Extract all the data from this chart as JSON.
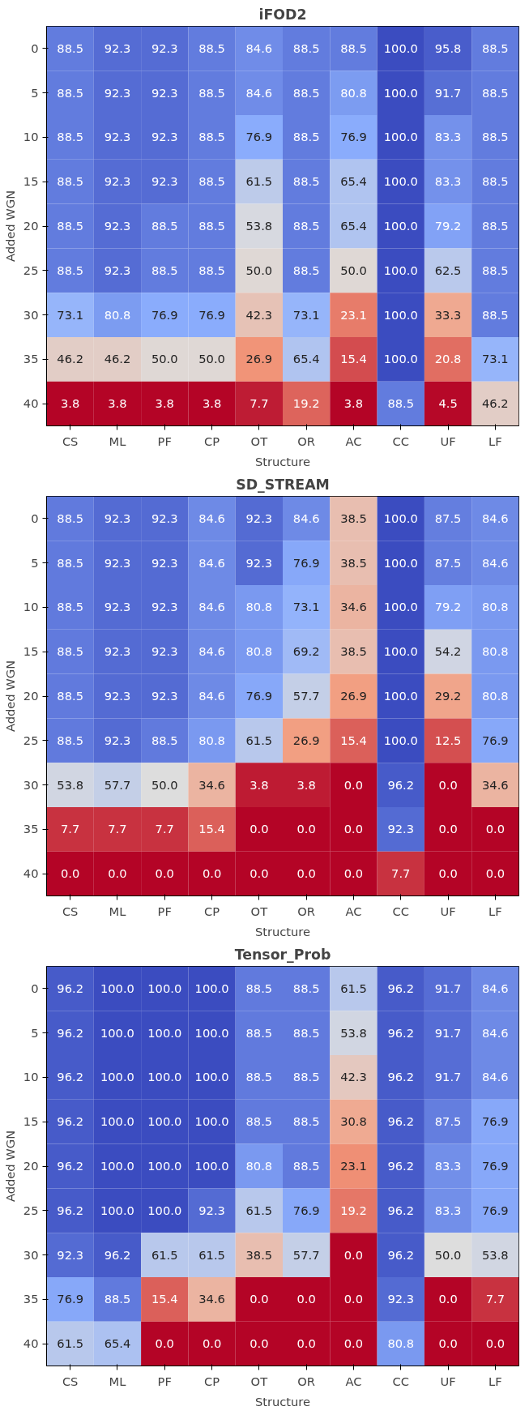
{
  "chart_data": [
    {
      "type": "heatmap",
      "title": "iFOD2",
      "xlabel": "Structure",
      "ylabel": "Added WGN",
      "categories": [
        "CS",
        "ML",
        "PF",
        "CP",
        "OT",
        "OR",
        "AC",
        "CC",
        "UF",
        "LF"
      ],
      "y_categories": [
        "0",
        "5",
        "10",
        "15",
        "20",
        "25",
        "30",
        "35",
        "40"
      ],
      "cells": [
        [
          88.5,
          92.3,
          92.3,
          88.5,
          84.6,
          88.5,
          88.5,
          100,
          95.8,
          88.5
        ],
        [
          88.5,
          92.3,
          92.3,
          88.5,
          84.6,
          88.5,
          80.8,
          100,
          91.7,
          88.5
        ],
        [
          88.5,
          92.3,
          92.3,
          88.5,
          76.9,
          88.5,
          76.9,
          100,
          83.3,
          88.5
        ],
        [
          88.5,
          92.3,
          92.3,
          88.5,
          61.5,
          88.5,
          65.4,
          100,
          83.3,
          88.5
        ],
        [
          88.5,
          92.3,
          88.5,
          88.5,
          53.8,
          88.5,
          65.4,
          100,
          79.2,
          88.5
        ],
        [
          88.5,
          92.3,
          88.5,
          88.5,
          50,
          88.5,
          50,
          100,
          62.5,
          88.5
        ],
        [
          73.1,
          80.8,
          76.9,
          76.9,
          42.3,
          73.1,
          23.1,
          100,
          33.3,
          88.5
        ],
        [
          46.2,
          46.2,
          50,
          50,
          26.9,
          65.4,
          15.4,
          100,
          20.8,
          73.1
        ],
        [
          3.8,
          3.8,
          3.8,
          3.8,
          7.7,
          19.2,
          3.8,
          88.5,
          4.5,
          46.2
        ]
      ],
      "cell_labels": [
        [
          "88.5",
          "92.3",
          "92.3",
          "88.5",
          "84.6",
          "88.5",
          "88.5",
          "100.0",
          "95.8",
          "88.5"
        ],
        [
          "88.5",
          "92.3",
          "92.3",
          "88.5",
          "84.6",
          "88.5",
          "80.8",
          "100.0",
          "91.7",
          "88.5"
        ],
        [
          "88.5",
          "92.3",
          "92.3",
          "88.5",
          "76.9",
          "88.5",
          "76.9",
          "100.0",
          "83.3",
          "88.5"
        ],
        [
          "88.5",
          "92.3",
          "92.3",
          "88.5",
          "61.5",
          "88.5",
          "65.4",
          "100.0",
          "83.3",
          "88.5"
        ],
        [
          "88.5",
          "92.3",
          "88.5",
          "88.5",
          "53.8",
          "88.5",
          "65.4",
          "100.0",
          "79.2",
          "88.5"
        ],
        [
          "88.5",
          "92.3",
          "88.5",
          "88.5",
          "50.0",
          "88.5",
          "50.0",
          "100.0",
          "62.5",
          "88.5"
        ],
        [
          "73.1",
          "80.8",
          "76.9",
          "76.9",
          "42.3",
          "73.1",
          "23.1",
          "100.0",
          "33.3",
          "88.5"
        ],
        [
          "46.2",
          "46.2",
          "50.0",
          "50.0",
          "26.9",
          "65.4",
          "15.4",
          "100.0",
          "20.8",
          "73.1"
        ],
        [
          "3.8",
          "3.8",
          "3.8",
          "3.8",
          "7.7",
          "19.2",
          "3.8",
          "88.5",
          "4.5",
          "46.2"
        ]
      ]
    },
    {
      "type": "heatmap",
      "title": "SD_STREAM",
      "xlabel": "Structure",
      "ylabel": "Added WGN",
      "categories": [
        "CS",
        "ML",
        "PF",
        "CP",
        "OT",
        "OR",
        "AC",
        "CC",
        "UF",
        "LF"
      ],
      "y_categories": [
        "0",
        "5",
        "10",
        "15",
        "20",
        "25",
        "30",
        "35",
        "40"
      ],
      "cells": [
        [
          88.5,
          92.3,
          92.3,
          84.6,
          92.3,
          84.6,
          38.5,
          100,
          87.5,
          84.6
        ],
        [
          88.5,
          92.3,
          92.3,
          84.6,
          92.3,
          76.9,
          38.5,
          100,
          87.5,
          84.6
        ],
        [
          88.5,
          92.3,
          92.3,
          84.6,
          80.8,
          73.1,
          34.6,
          100,
          79.2,
          80.8
        ],
        [
          88.5,
          92.3,
          92.3,
          84.6,
          80.8,
          69.2,
          38.5,
          100,
          54.2,
          80.8
        ],
        [
          88.5,
          92.3,
          92.3,
          84.6,
          76.9,
          57.7,
          26.9,
          100,
          29.2,
          80.8
        ],
        [
          88.5,
          92.3,
          88.5,
          80.8,
          61.5,
          26.9,
          15.4,
          100,
          12.5,
          76.9
        ],
        [
          53.8,
          57.7,
          50,
          34.6,
          3.8,
          3.8,
          0,
          96.2,
          0,
          34.6
        ],
        [
          7.7,
          7.7,
          7.7,
          15.4,
          0,
          0,
          0,
          92.3,
          0,
          0
        ],
        [
          0,
          0,
          0,
          0,
          0,
          0,
          0,
          7.7,
          0,
          0
        ]
      ],
      "cell_labels": [
        [
          "88.5",
          "92.3",
          "92.3",
          "84.6",
          "92.3",
          "84.6",
          "38.5",
          "100.0",
          "87.5",
          "84.6"
        ],
        [
          "88.5",
          "92.3",
          "92.3",
          "84.6",
          "92.3",
          "76.9",
          "38.5",
          "100.0",
          "87.5",
          "84.6"
        ],
        [
          "88.5",
          "92.3",
          "92.3",
          "84.6",
          "80.8",
          "73.1",
          "34.6",
          "100.0",
          "79.2",
          "80.8"
        ],
        [
          "88.5",
          "92.3",
          "92.3",
          "84.6",
          "80.8",
          "69.2",
          "38.5",
          "100.0",
          "54.2",
          "80.8"
        ],
        [
          "88.5",
          "92.3",
          "92.3",
          "84.6",
          "76.9",
          "57.7",
          "26.9",
          "100.0",
          "29.2",
          "80.8"
        ],
        [
          "88.5",
          "92.3",
          "88.5",
          "80.8",
          "61.5",
          "26.9",
          "15.4",
          "100.0",
          "12.5",
          "76.9"
        ],
        [
          "53.8",
          "57.7",
          "50.0",
          "34.6",
          "3.8",
          "3.8",
          "0.0",
          "96.2",
          "0.0",
          "34.6"
        ],
        [
          "7.7",
          "7.7",
          "7.7",
          "15.4",
          "0.0",
          "0.0",
          "0.0",
          "92.3",
          "0.0",
          "0.0"
        ],
        [
          "0.0",
          "0.0",
          "0.0",
          "0.0",
          "0.0",
          "0.0",
          "0.0",
          "7.7",
          "0.0",
          "0.0"
        ]
      ]
    },
    {
      "type": "heatmap",
      "title": "Tensor_Prob",
      "xlabel": "Structure",
      "ylabel": "Added WGN",
      "categories": [
        "CS",
        "ML",
        "PF",
        "CP",
        "OT",
        "OR",
        "AC",
        "CC",
        "UF",
        "LF"
      ],
      "y_categories": [
        "0",
        "5",
        "10",
        "15",
        "20",
        "25",
        "30",
        "35",
        "40"
      ],
      "cells": [
        [
          96.2,
          100,
          100,
          100,
          88.5,
          88.5,
          61.5,
          96.2,
          91.7,
          84.6
        ],
        [
          96.2,
          100,
          100,
          100,
          88.5,
          88.5,
          53.8,
          96.2,
          91.7,
          84.6
        ],
        [
          96.2,
          100,
          100,
          100,
          88.5,
          88.5,
          42.3,
          96.2,
          91.7,
          84.6
        ],
        [
          96.2,
          100,
          100,
          100,
          88.5,
          88.5,
          30.8,
          96.2,
          87.5,
          76.9
        ],
        [
          96.2,
          100,
          100,
          100,
          80.8,
          88.5,
          23.1,
          96.2,
          83.3,
          76.9
        ],
        [
          96.2,
          100,
          100,
          92.3,
          61.5,
          76.9,
          19.2,
          96.2,
          83.3,
          76.9
        ],
        [
          92.3,
          96.2,
          61.5,
          61.5,
          38.5,
          57.7,
          0,
          96.2,
          50,
          53.8
        ],
        [
          76.9,
          88.5,
          15.4,
          34.6,
          0,
          0,
          0,
          92.3,
          0,
          7.7
        ],
        [
          61.5,
          65.4,
          0,
          0,
          0,
          0,
          0,
          80.8,
          0,
          0
        ]
      ],
      "cell_labels": [
        [
          "96.2",
          "100.0",
          "100.0",
          "100.0",
          "88.5",
          "88.5",
          "61.5",
          "96.2",
          "91.7",
          "84.6"
        ],
        [
          "96.2",
          "100.0",
          "100.0",
          "100.0",
          "88.5",
          "88.5",
          "53.8",
          "96.2",
          "91.7",
          "84.6"
        ],
        [
          "96.2",
          "100.0",
          "100.0",
          "100.0",
          "88.5",
          "88.5",
          "42.3",
          "96.2",
          "91.7",
          "84.6"
        ],
        [
          "96.2",
          "100.0",
          "100.0",
          "100.0",
          "88.5",
          "88.5",
          "30.8",
          "96.2",
          "87.5",
          "76.9"
        ],
        [
          "96.2",
          "100.0",
          "100.0",
          "100.0",
          "80.8",
          "88.5",
          "23.1",
          "96.2",
          "83.3",
          "76.9"
        ],
        [
          "96.2",
          "100.0",
          "100.0",
          "92.3",
          "61.5",
          "76.9",
          "19.2",
          "96.2",
          "83.3",
          "76.9"
        ],
        [
          "92.3",
          "96.2",
          "61.5",
          "61.5",
          "38.5",
          "57.7",
          "0.0",
          "96.2",
          "50.0",
          "53.8"
        ],
        [
          "76.9",
          "88.5",
          "15.4",
          "34.6",
          "0.0",
          "0.0",
          "0.0",
          "92.3",
          "0.0",
          "7.7"
        ],
        [
          "61.5",
          "65.4",
          "0.0",
          "0.0",
          "0.0",
          "0.0",
          "0.0",
          "80.8",
          "0.0",
          "0.0"
        ]
      ]
    }
  ]
}
